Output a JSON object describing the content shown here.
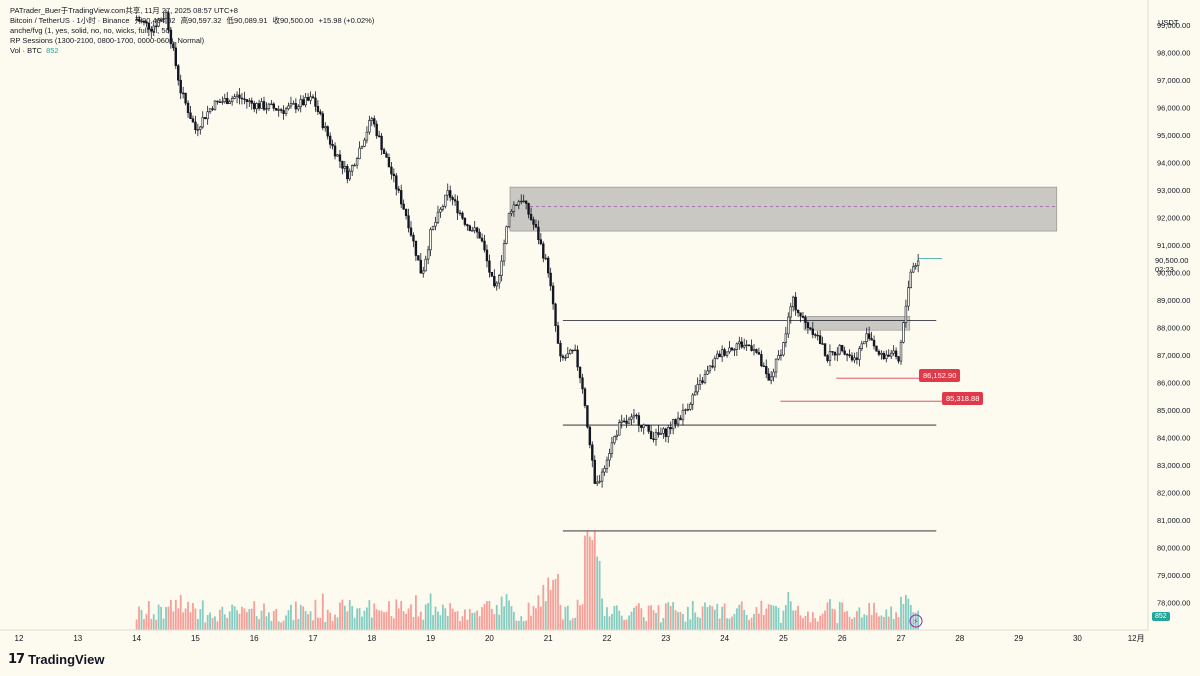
{
  "legend": {
    "line1": "PATrader_Buer于TradingView.com共享, 11月 27, 2025 08:57 UTC+8",
    "line2_symbol": "Bitcoin / TetherUS · 1小时 · Binance",
    "open": "开90,484.02",
    "high": "高90,597.32",
    "low": "低90,089.91",
    "close": "收90,500.00",
    "change": "+15.98 (+0.02%)",
    "line3": "anche/fvg (1, yes, solid, no, no, wicks, full fill, 50)",
    "line4": "RP Sessions (1300-2100, 0800-1700, 0000-0600, Normal)",
    "line5_label": "Vol · BTC",
    "line5_value": "852"
  },
  "price_axis": {
    "currency": "USDT",
    "current_price": "90,500.00",
    "countdown": "02:23",
    "volume_tag": "852"
  },
  "price_tags": {
    "tag1": "86,152.90",
    "tag2": "85,318.88"
  },
  "brand": {
    "logo_mark": "17",
    "name": "TradingView"
  },
  "colors": {
    "background": "#fdfbf0",
    "up": "#131722",
    "down": "#131722",
    "vol_up": "#26a69a",
    "vol_down": "#ef5350",
    "zone": "#9e9e9e",
    "tag": "#e03a4a"
  },
  "chart_data": {
    "type": "candlestick",
    "symbol": "Bitcoin / TetherUS",
    "timeframe": "1小时",
    "y_ticks": [
      78000,
      79000,
      80000,
      81000,
      82000,
      83000,
      84000,
      85000,
      86000,
      87000,
      88000,
      89000,
      90000,
      91000,
      92000,
      93000,
      94000,
      95000,
      96000,
      97000,
      98000,
      99000
    ],
    "ylim": [
      77000,
      99900
    ],
    "x_ticks": [
      "12",
      "13",
      "14",
      "15",
      "16",
      "17",
      "18",
      "19",
      "20",
      "21",
      "22",
      "23",
      "24",
      "25",
      "26",
      "27",
      "28",
      "29",
      "30",
      "12月"
    ],
    "price_path": [
      {
        "day": 14.0,
        "price": 99200
      },
      {
        "day": 14.25,
        "price": 98900
      },
      {
        "day": 14.5,
        "price": 99400
      },
      {
        "day": 14.75,
        "price": 96600
      },
      {
        "day": 15.0,
        "price": 95200
      },
      {
        "day": 15.3,
        "price": 96100
      },
      {
        "day": 15.7,
        "price": 96400
      },
      {
        "day": 16.0,
        "price": 96100
      },
      {
        "day": 16.5,
        "price": 95900
      },
      {
        "day": 17.0,
        "price": 96300
      },
      {
        "day": 17.3,
        "price": 94700
      },
      {
        "day": 17.6,
        "price": 93500
      },
      {
        "day": 18.0,
        "price": 95600
      },
      {
        "day": 18.3,
        "price": 93800
      },
      {
        "day": 18.6,
        "price": 92000
      },
      {
        "day": 18.85,
        "price": 89900
      },
      {
        "day": 19.0,
        "price": 91400
      },
      {
        "day": 19.3,
        "price": 92900
      },
      {
        "day": 19.6,
        "price": 91800
      },
      {
        "day": 19.85,
        "price": 91300
      },
      {
        "day": 20.1,
        "price": 89200
      },
      {
        "day": 20.35,
        "price": 92300
      },
      {
        "day": 20.55,
        "price": 92700
      },
      {
        "day": 20.8,
        "price": 91500
      },
      {
        "day": 21.0,
        "price": 90100
      },
      {
        "day": 21.2,
        "price": 86800
      },
      {
        "day": 21.45,
        "price": 87100
      },
      {
        "day": 21.6,
        "price": 85700
      },
      {
        "day": 21.8,
        "price": 82100
      },
      {
        "day": 22.0,
        "price": 83300
      },
      {
        "day": 22.2,
        "price": 84400
      },
      {
        "day": 22.5,
        "price": 84700
      },
      {
        "day": 22.8,
        "price": 84000
      },
      {
        "day": 23.0,
        "price": 84200
      },
      {
        "day": 23.3,
        "price": 84900
      },
      {
        "day": 23.6,
        "price": 86000
      },
      {
        "day": 23.9,
        "price": 87000
      },
      {
        "day": 24.2,
        "price": 87400
      },
      {
        "day": 24.5,
        "price": 87300
      },
      {
        "day": 24.75,
        "price": 86000
      },
      {
        "day": 25.0,
        "price": 87400
      },
      {
        "day": 25.15,
        "price": 89000
      },
      {
        "day": 25.35,
        "price": 88200
      },
      {
        "day": 25.55,
        "price": 87800
      },
      {
        "day": 25.75,
        "price": 86900
      },
      {
        "day": 26.0,
        "price": 87300
      },
      {
        "day": 26.2,
        "price": 86800
      },
      {
        "day": 26.45,
        "price": 87800
      },
      {
        "day": 26.65,
        "price": 86900
      },
      {
        "day": 26.85,
        "price": 87100
      },
      {
        "day": 26.95,
        "price": 86600
      },
      {
        "day": 27.05,
        "price": 88200
      },
      {
        "day": 27.15,
        "price": 90000
      },
      {
        "day": 27.3,
        "price": 90500
      }
    ],
    "zones": [
      {
        "from_day": 20.35,
        "to_day": 29.65,
        "top": 93100,
        "bottom": 91500,
        "mid": 92400
      },
      {
        "from_day": 25.35,
        "to_day": 27.15,
        "top": 88400,
        "bottom": 87900
      }
    ],
    "levels": [
      {
        "price": 88250,
        "from_day": 21.25,
        "to_day": 27.6
      },
      {
        "price": 84450,
        "from_day": 21.25,
        "to_day": 27.6
      },
      {
        "price": 80600,
        "from_day": 21.25,
        "to_day": 27.6
      },
      {
        "price": 90500,
        "from_day": 27.3,
        "to_day": 27.7
      }
    ],
    "red_levels": [
      {
        "price": 86152.9,
        "from_day": 25.9,
        "to_day": 27.35
      },
      {
        "price": 85318.88,
        "from_day": 24.95,
        "to_day": 27.7
      }
    ]
  }
}
